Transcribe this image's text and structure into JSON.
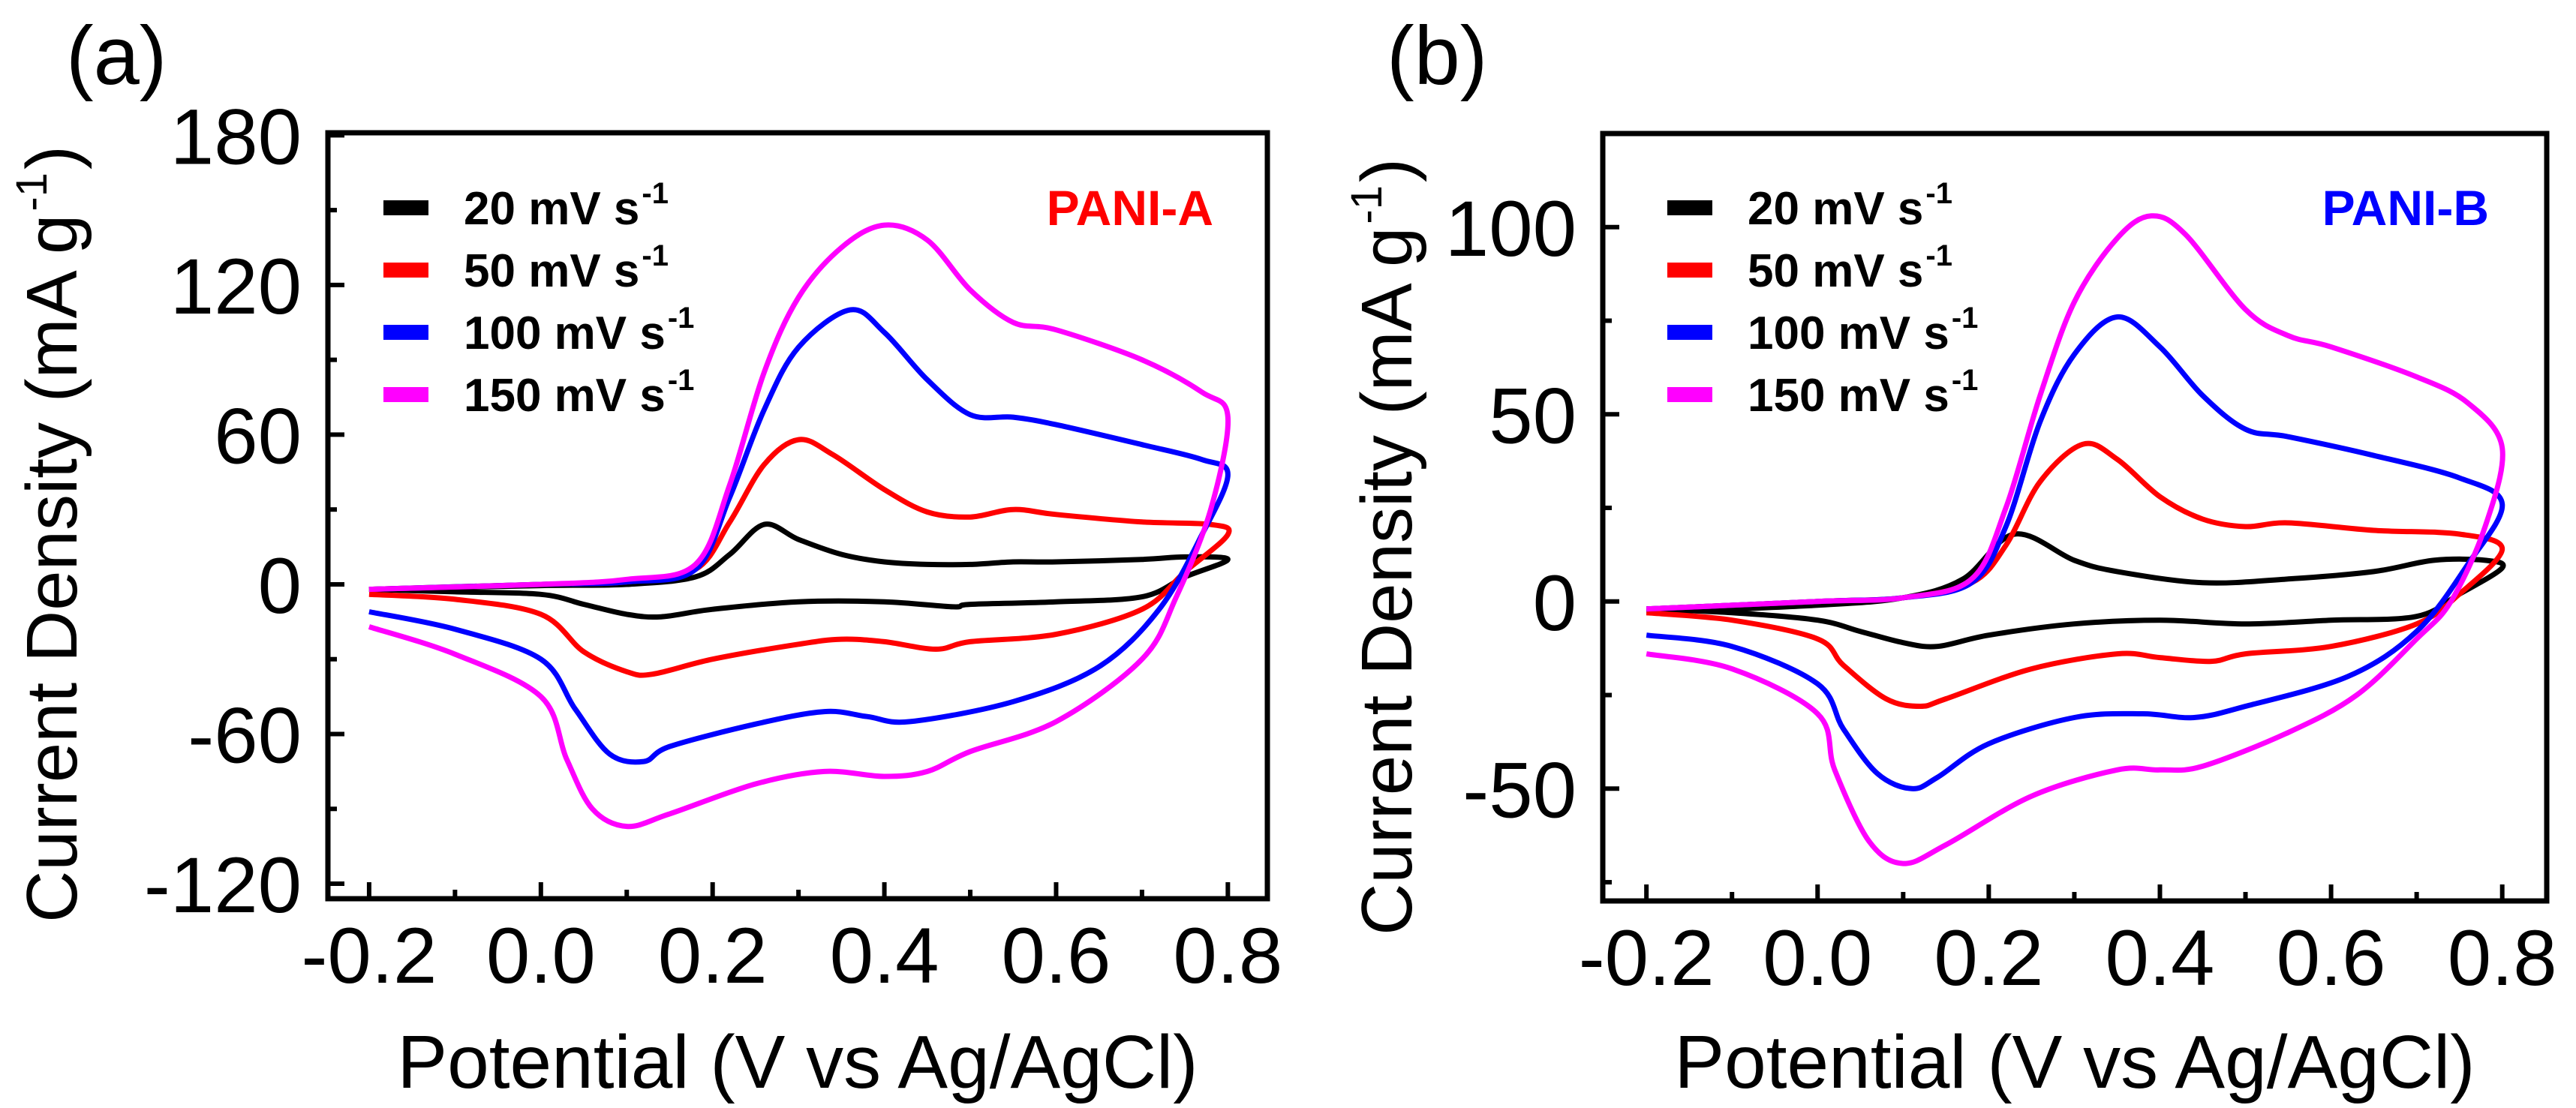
{
  "chart_data": [
    {
      "type": "line",
      "panel_label": "(a)",
      "annotation": "PANI-A",
      "annotation_color": "#ff0000",
      "xlabel": "Potential (V vs Ag/AgCl)",
      "ylabel": {
        "text": "Current Density (mA g",
        "sup": "-1",
        "close": ")"
      },
      "xlim": [
        -0.248,
        0.846
      ],
      "ylim": [
        -126,
        181
      ],
      "xticks": [
        -0.2,
        0.0,
        0.2,
        0.4,
        0.6,
        0.8
      ],
      "xtick_labels": [
        "-0.2",
        "0.0",
        "0.2",
        "0.4",
        "0.6",
        "0.8"
      ],
      "yticks": [
        -120,
        -60,
        0,
        60,
        120,
        180
      ],
      "ytick_labels": [
        "-120",
        "-60",
        "0",
        "60",
        "120",
        "180"
      ],
      "y_minor_step": 30,
      "x_minor_step": 0.1,
      "legend_placement": "top-left",
      "series": [
        {
          "name": "20 mV s",
          "sup": "-1",
          "color": "#000000",
          "forward": [
            [
              -0.2,
              -2
            ],
            [
              0,
              -0.5
            ],
            [
              0.1,
              0
            ],
            [
              0.18,
              3
            ],
            [
              0.22,
              12
            ],
            [
              0.26,
              24
            ],
            [
              0.3,
              18
            ],
            [
              0.35,
              12
            ],
            [
              0.4,
              9
            ],
            [
              0.45,
              8
            ],
            [
              0.5,
              8
            ],
            [
              0.55,
              9
            ],
            [
              0.6,
              9
            ],
            [
              0.7,
              10
            ],
            [
              0.75,
              11
            ],
            [
              0.8,
              10
            ]
          ],
          "reverse": [
            [
              0.8,
              10
            ],
            [
              0.75,
              3
            ],
            [
              0.7,
              -5
            ],
            [
              0.6,
              -7
            ],
            [
              0.5,
              -8
            ],
            [
              0.48,
              -9
            ],
            [
              0.4,
              -7
            ],
            [
              0.3,
              -7
            ],
            [
              0.2,
              -10
            ],
            [
              0.14,
              -13
            ],
            [
              0.1,
              -12
            ],
            [
              0.05,
              -8
            ],
            [
              0,
              -4
            ],
            [
              -0.1,
              -3
            ],
            [
              -0.2,
              -2
            ]
          ]
        },
        {
          "name": "50 mV s",
          "sup": "-1",
          "color": "#ff0000",
          "forward": [
            [
              -0.2,
              -2
            ],
            [
              0,
              0
            ],
            [
              0.1,
              1
            ],
            [
              0.18,
              6
            ],
            [
              0.22,
              25
            ],
            [
              0.26,
              48
            ],
            [
              0.3,
              58
            ],
            [
              0.34,
              52
            ],
            [
              0.4,
              38
            ],
            [
              0.45,
              29
            ],
            [
              0.5,
              27
            ],
            [
              0.55,
              30
            ],
            [
              0.6,
              28
            ],
            [
              0.7,
              25
            ],
            [
              0.78,
              24
            ],
            [
              0.8,
              20
            ]
          ],
          "reverse": [
            [
              0.8,
              20
            ],
            [
              0.75,
              5
            ],
            [
              0.7,
              -10
            ],
            [
              0.6,
              -20
            ],
            [
              0.5,
              -23
            ],
            [
              0.46,
              -26
            ],
            [
              0.4,
              -23
            ],
            [
              0.35,
              -22
            ],
            [
              0.3,
              -24
            ],
            [
              0.2,
              -30
            ],
            [
              0.13,
              -36
            ],
            [
              0.1,
              -35
            ],
            [
              0.05,
              -27
            ],
            [
              0,
              -12
            ],
            [
              -0.1,
              -6
            ],
            [
              -0.2,
              -4
            ]
          ]
        },
        {
          "name": "100 mV s",
          "sup": "-1",
          "color": "#0000ff",
          "forward": [
            [
              -0.2,
              -2
            ],
            [
              0,
              0
            ],
            [
              0.1,
              1
            ],
            [
              0.18,
              6
            ],
            [
              0.22,
              35
            ],
            [
              0.26,
              70
            ],
            [
              0.3,
              95
            ],
            [
              0.36,
              110
            ],
            [
              0.4,
              101
            ],
            [
              0.45,
              82
            ],
            [
              0.5,
              68
            ],
            [
              0.55,
              67
            ],
            [
              0.6,
              64
            ],
            [
              0.7,
              56
            ],
            [
              0.77,
              50
            ],
            [
              0.8,
              44
            ]
          ],
          "reverse": [
            [
              0.8,
              44
            ],
            [
              0.77,
              20
            ],
            [
              0.72,
              -10
            ],
            [
              0.65,
              -33
            ],
            [
              0.55,
              -47
            ],
            [
              0.43,
              -55
            ],
            [
              0.38,
              -53
            ],
            [
              0.33,
              -51
            ],
            [
              0.25,
              -56
            ],
            [
              0.15,
              -65
            ],
            [
              0.12,
              -71
            ],
            [
              0.08,
              -68
            ],
            [
              0.04,
              -50
            ],
            [
              0,
              -30
            ],
            [
              -0.1,
              -18
            ],
            [
              -0.2,
              -11
            ]
          ]
        },
        {
          "name": "150 mV s",
          "sup": "-1",
          "color": "#ff00ff",
          "forward": [
            [
              -0.2,
              -2
            ],
            [
              0,
              0
            ],
            [
              0.1,
              2
            ],
            [
              0.18,
              8
            ],
            [
              0.22,
              40
            ],
            [
              0.26,
              85
            ],
            [
              0.3,
              115
            ],
            [
              0.35,
              135
            ],
            [
              0.4,
              144
            ],
            [
              0.45,
              138
            ],
            [
              0.5,
              118
            ],
            [
              0.55,
              105
            ],
            [
              0.6,
              102
            ],
            [
              0.7,
              90
            ],
            [
              0.77,
              77
            ],
            [
              0.8,
              67
            ]
          ],
          "reverse": [
            [
              0.8,
              67
            ],
            [
              0.78,
              30
            ],
            [
              0.74,
              -5
            ],
            [
              0.7,
              -30
            ],
            [
              0.6,
              -55
            ],
            [
              0.5,
              -67
            ],
            [
              0.45,
              -75
            ],
            [
              0.4,
              -77
            ],
            [
              0.33,
              -75
            ],
            [
              0.25,
              -80
            ],
            [
              0.15,
              -92
            ],
            [
              0.1,
              -97
            ],
            [
              0.06,
              -90
            ],
            [
              0.03,
              -70
            ],
            [
              0,
              -45
            ],
            [
              -0.1,
              -28
            ],
            [
              -0.2,
              -17
            ]
          ]
        }
      ]
    },
    {
      "type": "line",
      "panel_label": "(b)",
      "annotation": "PANI-B",
      "annotation_color": "#0000ff",
      "xlabel": "Potential (V vs Ag/AgCl)",
      "ylabel": {
        "text": "Current Density (mA g",
        "sup": "-1",
        "close": ")"
      },
      "xlim": [
        -0.251,
        0.852
      ],
      "ylim": [
        -80,
        125
      ],
      "xticks": [
        -0.2,
        0.0,
        0.2,
        0.4,
        0.6,
        0.8
      ],
      "xtick_labels": [
        "-0.2",
        "0.0",
        "0.2",
        "0.4",
        "0.6",
        "0.8"
      ],
      "yticks": [
        -50,
        0,
        50,
        100
      ],
      "ytick_labels": [
        "-50",
        "0",
        "50",
        "100"
      ],
      "y_minor_step": 25,
      "x_minor_step": 0.1,
      "legend_placement": "top-left",
      "series": [
        {
          "name": "20 mV s",
          "sup": "-1",
          "color": "#000000",
          "forward": [
            [
              -0.2,
              -3
            ],
            [
              0,
              -1
            ],
            [
              0.1,
              1
            ],
            [
              0.17,
              6
            ],
            [
              0.23,
              18
            ],
            [
              0.3,
              11
            ],
            [
              0.35,
              8
            ],
            [
              0.45,
              5
            ],
            [
              0.55,
              6
            ],
            [
              0.65,
              8
            ],
            [
              0.72,
              11
            ],
            [
              0.78,
              11
            ],
            [
              0.8,
              9
            ]
          ],
          "reverse": [
            [
              0.8,
              9
            ],
            [
              0.75,
              2
            ],
            [
              0.7,
              -4
            ],
            [
              0.6,
              -5
            ],
            [
              0.5,
              -6
            ],
            [
              0.4,
              -5
            ],
            [
              0.3,
              -6
            ],
            [
              0.2,
              -9
            ],
            [
              0.14,
              -12
            ],
            [
              0.1,
              -11
            ],
            [
              0.05,
              -8
            ],
            [
              0,
              -5
            ],
            [
              -0.1,
              -3
            ],
            [
              -0.2,
              -2
            ]
          ]
        },
        {
          "name": "50 mV s",
          "sup": "-1",
          "color": "#ff0000",
          "forward": [
            [
              -0.2,
              -2
            ],
            [
              0,
              0
            ],
            [
              0.1,
              1
            ],
            [
              0.18,
              5
            ],
            [
              0.22,
              15
            ],
            [
              0.26,
              32
            ],
            [
              0.31,
              42
            ],
            [
              0.35,
              38
            ],
            [
              0.4,
              28
            ],
            [
              0.45,
              22
            ],
            [
              0.5,
              20
            ],
            [
              0.55,
              21
            ],
            [
              0.65,
              19
            ],
            [
              0.75,
              18
            ],
            [
              0.8,
              14
            ]
          ],
          "reverse": [
            [
              0.8,
              14
            ],
            [
              0.75,
              2
            ],
            [
              0.7,
              -6
            ],
            [
              0.6,
              -12
            ],
            [
              0.5,
              -14
            ],
            [
              0.46,
              -16
            ],
            [
              0.4,
              -15
            ],
            [
              0.35,
              -14
            ],
            [
              0.25,
              -18
            ],
            [
              0.15,
              -26
            ],
            [
              0.12,
              -28
            ],
            [
              0.08,
              -26
            ],
            [
              0.03,
              -17
            ],
            [
              0,
              -10
            ],
            [
              -0.1,
              -5
            ],
            [
              -0.2,
              -3
            ]
          ]
        },
        {
          "name": "100 mV s",
          "sup": "-1",
          "color": "#0000ff",
          "forward": [
            [
              -0.2,
              -2
            ],
            [
              0,
              0
            ],
            [
              0.1,
              1
            ],
            [
              0.18,
              5
            ],
            [
              0.22,
              20
            ],
            [
              0.26,
              48
            ],
            [
              0.3,
              66
            ],
            [
              0.35,
              76
            ],
            [
              0.4,
              68
            ],
            [
              0.45,
              55
            ],
            [
              0.5,
              46
            ],
            [
              0.55,
              44
            ],
            [
              0.65,
              39
            ],
            [
              0.75,
              33
            ],
            [
              0.8,
              26
            ]
          ],
          "reverse": [
            [
              0.8,
              26
            ],
            [
              0.76,
              10
            ],
            [
              0.7,
              -8
            ],
            [
              0.62,
              -20
            ],
            [
              0.5,
              -28
            ],
            [
              0.44,
              -31
            ],
            [
              0.38,
              -30
            ],
            [
              0.3,
              -31
            ],
            [
              0.2,
              -38
            ],
            [
              0.14,
              -47
            ],
            [
              0.11,
              -50
            ],
            [
              0.07,
              -46
            ],
            [
              0.03,
              -34
            ],
            [
              0,
              -22
            ],
            [
              -0.1,
              -12
            ],
            [
              -0.2,
              -9
            ]
          ]
        },
        {
          "name": "150 mV s",
          "sup": "-1",
          "color": "#ff00ff",
          "forward": [
            [
              -0.2,
              -2
            ],
            [
              0,
              0
            ],
            [
              0.1,
              1
            ],
            [
              0.18,
              6
            ],
            [
              0.22,
              25
            ],
            [
              0.26,
              55
            ],
            [
              0.3,
              80
            ],
            [
              0.35,
              97
            ],
            [
              0.39,
              103
            ],
            [
              0.43,
              98
            ],
            [
              0.5,
              78
            ],
            [
              0.55,
              71
            ],
            [
              0.6,
              68
            ],
            [
              0.7,
              60
            ],
            [
              0.76,
              53
            ],
            [
              0.8,
              41
            ]
          ],
          "reverse": [
            [
              0.8,
              41
            ],
            [
              0.78,
              20
            ],
            [
              0.74,
              0
            ],
            [
              0.7,
              -10
            ],
            [
              0.63,
              -25
            ],
            [
              0.55,
              -35
            ],
            [
              0.45,
              -44
            ],
            [
              0.4,
              -45
            ],
            [
              0.35,
              -45
            ],
            [
              0.25,
              -52
            ],
            [
              0.15,
              -65
            ],
            [
              0.1,
              -70
            ],
            [
              0.06,
              -64
            ],
            [
              0.02,
              -45
            ],
            [
              0,
              -30
            ],
            [
              -0.1,
              -18
            ],
            [
              -0.2,
              -14
            ]
          ]
        }
      ]
    }
  ]
}
